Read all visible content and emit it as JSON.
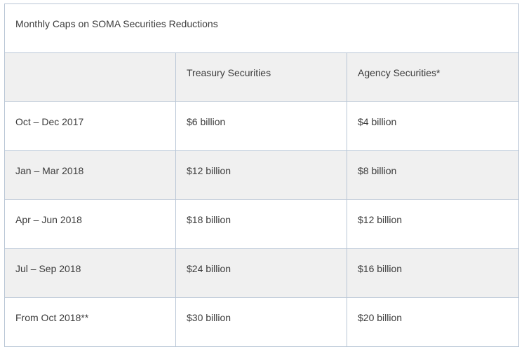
{
  "table": {
    "caption": "Monthly Caps on SOMA Securities Reductions",
    "headers": [
      "",
      "Treasury Securities",
      "Agency Securities*"
    ],
    "rows": [
      [
        "Oct – Dec 2017",
        "$6 billion",
        "$4 billion"
      ],
      [
        "Jan – Mar 2018",
        "$12 billion",
        "$8 billion"
      ],
      [
        "Apr – Jun 2018",
        "$18 billion",
        "$12 billion"
      ],
      [
        "Jul – Sep 2018",
        "$24 billion",
        "$16 billion"
      ],
      [
        "From Oct 2018**",
        "$30 billion",
        "$20 billion"
      ]
    ]
  }
}
